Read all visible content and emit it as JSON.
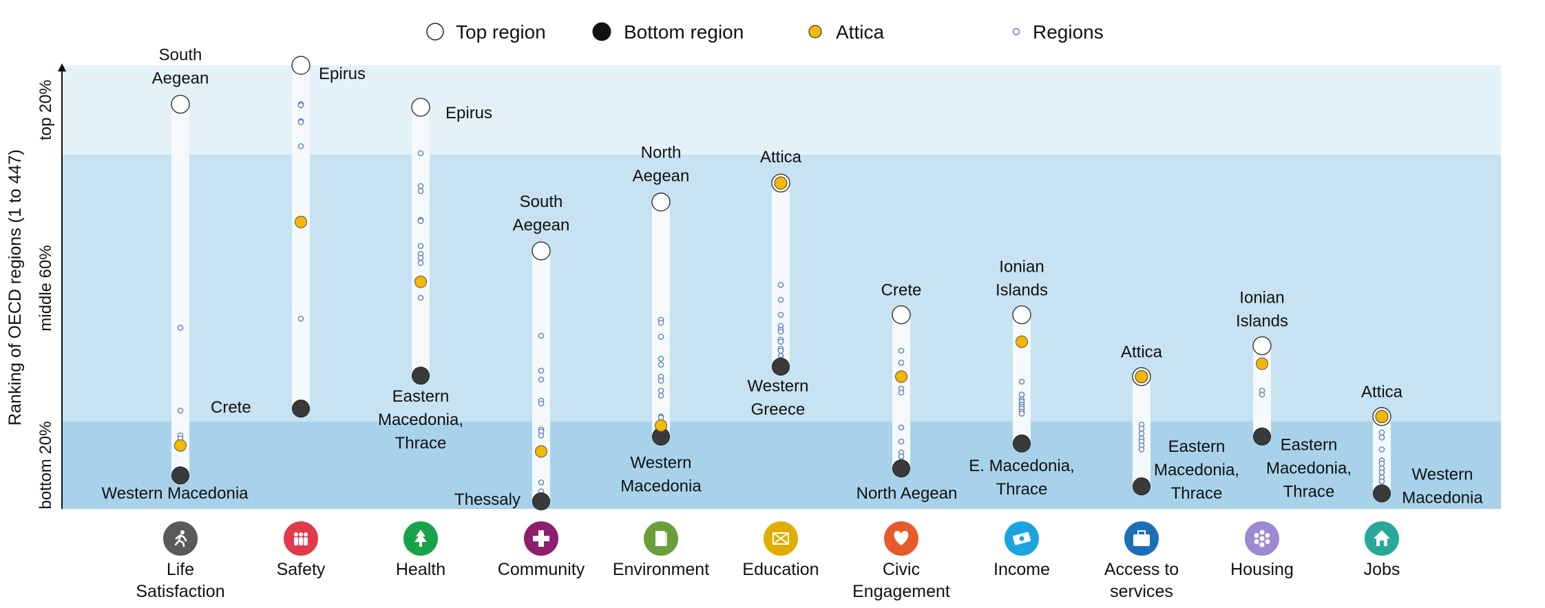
{
  "chart_data": {
    "type": "scatter",
    "y_axis_label": "Ranking of OECD regions (1 to 447)",
    "bands": [
      {
        "label": "top 20%",
        "color": "#e3f1f9"
      },
      {
        "label": "middle 60%",
        "color": "#c7e2f0"
      },
      {
        "label": "bottom 20%",
        "color": "#a8d2ea"
      }
    ],
    "legend": [
      {
        "key": "top",
        "label": "Top region"
      },
      {
        "key": "bottom",
        "label": "Bottom region"
      },
      {
        "key": "attica",
        "label": "Attica"
      },
      {
        "key": "regions",
        "label": "Regions"
      }
    ],
    "colors": {
      "top_fill": "#ffffff",
      "bottom_fill": "#3a3a3a",
      "attica_fill": "#f5b800",
      "region_stroke": "#5b82b8",
      "column_fill": "#f5f9fc"
    },
    "ylim": [
      447,
      1
    ],
    "categories": [
      {
        "name": "Life\nSatisfaction",
        "icon": "person-running-icon",
        "icon_color": "#5a5a5a",
        "top_rank": 40,
        "top_region": "South\nAegean",
        "bottom_rank": 412,
        "bottom_region": "Western Macedonia",
        "attica_rank": 382,
        "others": [
          264,
          347,
          372,
          375
        ],
        "extra_label": "Crete"
      },
      {
        "name": "Safety",
        "icon": "people-icon",
        "icon_color": "#e2394d",
        "top_rank": 1,
        "top_region": "Epirus",
        "bottom_rank": 345,
        "bottom_region": "",
        "attica_rank": 158,
        "others": [
          40,
          41,
          57,
          58,
          82,
          255
        ]
      },
      {
        "name": "Health",
        "icon": "tree-icon",
        "icon_color": "#17a34a",
        "top_rank": 43,
        "top_region": "Epirus",
        "bottom_rank": 312,
        "bottom_region": "Eastern\nMacedonia,\nThrace",
        "attica_rank": 218,
        "others": [
          89,
          122,
          127,
          156,
          157,
          182,
          190,
          194,
          199,
          234
        ]
      },
      {
        "name": "Community",
        "icon": "plus-icon",
        "icon_color": "#8e1f6e",
        "top_rank": 187,
        "top_region": "South\nAegean",
        "bottom_rank": 438,
        "bottom_region": "Thessaly",
        "attica_rank": 388,
        "others": [
          272,
          307,
          316,
          337,
          340,
          366,
          368,
          372,
          419,
          428,
          432,
          435
        ]
      },
      {
        "name": "Environment",
        "icon": "book-icon",
        "icon_color": "#6a9e3a",
        "top_rank": 138,
        "top_region": "North\nAegean",
        "bottom_rank": 373,
        "bottom_region": "Western\nMacedonia",
        "attica_rank": 362,
        "others": [
          256,
          259,
          273,
          295,
          301,
          313,
          317,
          327,
          332,
          353,
          354
        ]
      },
      {
        "name": "Education",
        "icon": "envelope-icon",
        "icon_color": "#e0ad00",
        "top_rank": 119,
        "top_region": "Attica",
        "bottom_rank": 303,
        "bottom_region": "Western\nGreece",
        "attica_rank": 119,
        "others": [
          221,
          236,
          251,
          262,
          266,
          268,
          276,
          278,
          285,
          287,
          292,
          296
        ]
      },
      {
        "name": "Civic\nEngagement",
        "icon": "heart-icon",
        "icon_color": "#e55b2a",
        "top_rank": 251,
        "top_region": "Crete",
        "bottom_rank": 405,
        "bottom_region": "North Aegean",
        "attica_rank": 313,
        "others": [
          256,
          287,
          299,
          325,
          329,
          364,
          378,
          389,
          393,
          398
        ]
      },
      {
        "name": "Income",
        "icon": "money-icon",
        "icon_color": "#1aa4e0",
        "top_rank": 251,
        "top_region": "Ionian\nIslands",
        "bottom_rank": 380,
        "bottom_region": "E. Macedonia,\nThrace",
        "attica_rank": 278,
        "others": [
          256,
          318,
          331,
          336,
          338,
          341,
          343,
          345,
          348,
          350
        ]
      },
      {
        "name": "Access to\nservices",
        "icon": "briefcase-icon",
        "icon_color": "#1c6fb5",
        "top_rank": 313,
        "top_region": "Attica",
        "bottom_rank": 423,
        "bottom_region": "Eastern\nMacedonia,\nThrace",
        "attica_rank": 313,
        "others": [
          317,
          361,
          365,
          370,
          375,
          378,
          382,
          386
        ]
      },
      {
        "name": "Housing",
        "icon": "flower-icon",
        "icon_color": "#9a8bd0",
        "top_rank": 282,
        "top_region": "Ionian\nIslands",
        "bottom_rank": 373,
        "bottom_region": "Eastern\nMacedonia,\nThrace",
        "attica_rank": 300,
        "others": [
          327,
          331
        ]
      },
      {
        "name": "Jobs",
        "icon": "house-icon",
        "icon_color": "#27a89a",
        "top_rank": 353,
        "top_region": "Attica",
        "bottom_rank": 430,
        "bottom_region": "Western\nMacedonia",
        "attica_rank": 353,
        "others": [
          358,
          369,
          374,
          386,
          397,
          400,
          405,
          409,
          414,
          418
        ]
      }
    ]
  }
}
